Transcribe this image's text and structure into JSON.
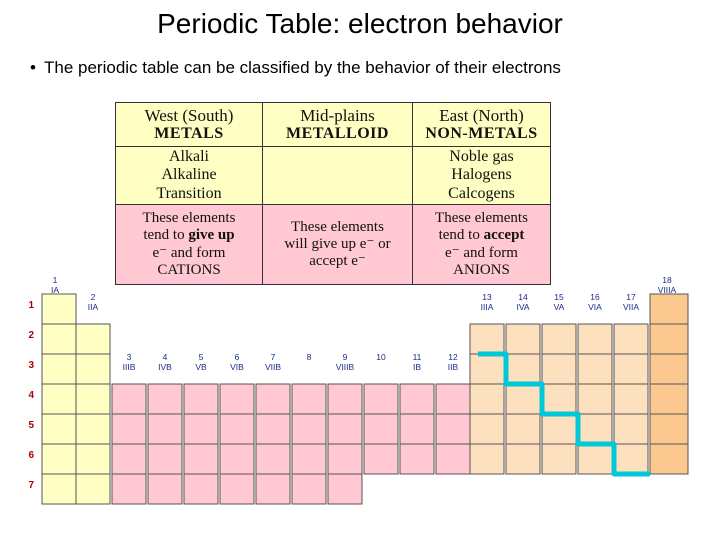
{
  "slide": {
    "title": "Periodic Table: electron behavior",
    "bullet": "The periodic table can be classified by the behavior of their electrons"
  },
  "summary_table": {
    "west": {
      "region": "West (South)",
      "class": "METALS",
      "families": [
        "Alkali",
        "Alkaline",
        "Transition"
      ],
      "desc_pre": "These elements",
      "desc_mid": "tend to ",
      "desc_bold": "give up",
      "desc_line3": "e⁻ and form",
      "desc_ion": "CATIONS"
    },
    "mid": {
      "region": "Mid-plains",
      "class": "METALLOID",
      "desc_line1": "These elements",
      "desc_line2": "will give up e⁻ or",
      "desc_line3": "accept e⁻"
    },
    "east": {
      "region": "East (North)",
      "class": "NON-METALS",
      "families": [
        "Noble gas",
        "Halogens",
        "Calcogens"
      ],
      "desc_pre": "These elements",
      "desc_mid": "tend to ",
      "desc_bold": "accept",
      "desc_line3": "e⁻  and form",
      "desc_ion": "ANIONS"
    }
  },
  "periodic_table": {
    "periods": [
      "1",
      "2",
      "3",
      "4",
      "5",
      "6",
      "7"
    ],
    "group_numbers": [
      "1",
      "2",
      "3",
      "4",
      "5",
      "6",
      "7",
      "8",
      "9",
      "10",
      "11",
      "12",
      "13",
      "14",
      "15",
      "16",
      "17",
      "18"
    ],
    "group_names": [
      "IA",
      "IIA",
      "IIIB",
      "IVB",
      "VB",
      "VIB",
      "VIIB",
      "",
      "VIIIB",
      "",
      "IB",
      "IIB",
      "IIIA",
      "IVA",
      "VA",
      "VIA",
      "VIIA",
      "VIIIA"
    ],
    "colors": {
      "alkali": "#ffffc4",
      "transition": "#ffc8d2",
      "nonmetal": "#fde0bd",
      "noble": "#fbc98f",
      "staircase": "#00c8d8",
      "grid": "#555555"
    }
  }
}
